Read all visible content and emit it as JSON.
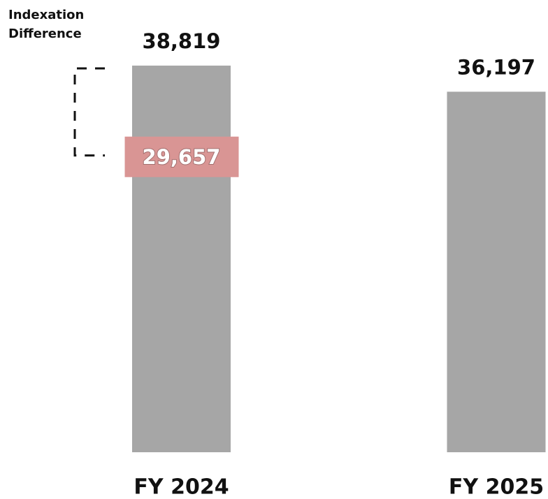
{
  "chart_data": {
    "type": "bar",
    "categories": [
      "FY 2024",
      "FY 2025"
    ],
    "values": [
      38819,
      36197
    ],
    "value_labels": [
      "38,819",
      "36,197"
    ],
    "color": "#a6a6a6",
    "annotation": {
      "text": "Indexation Difference",
      "value": 29657,
      "value_label": "29,657",
      "color": "#d99594"
    }
  }
}
